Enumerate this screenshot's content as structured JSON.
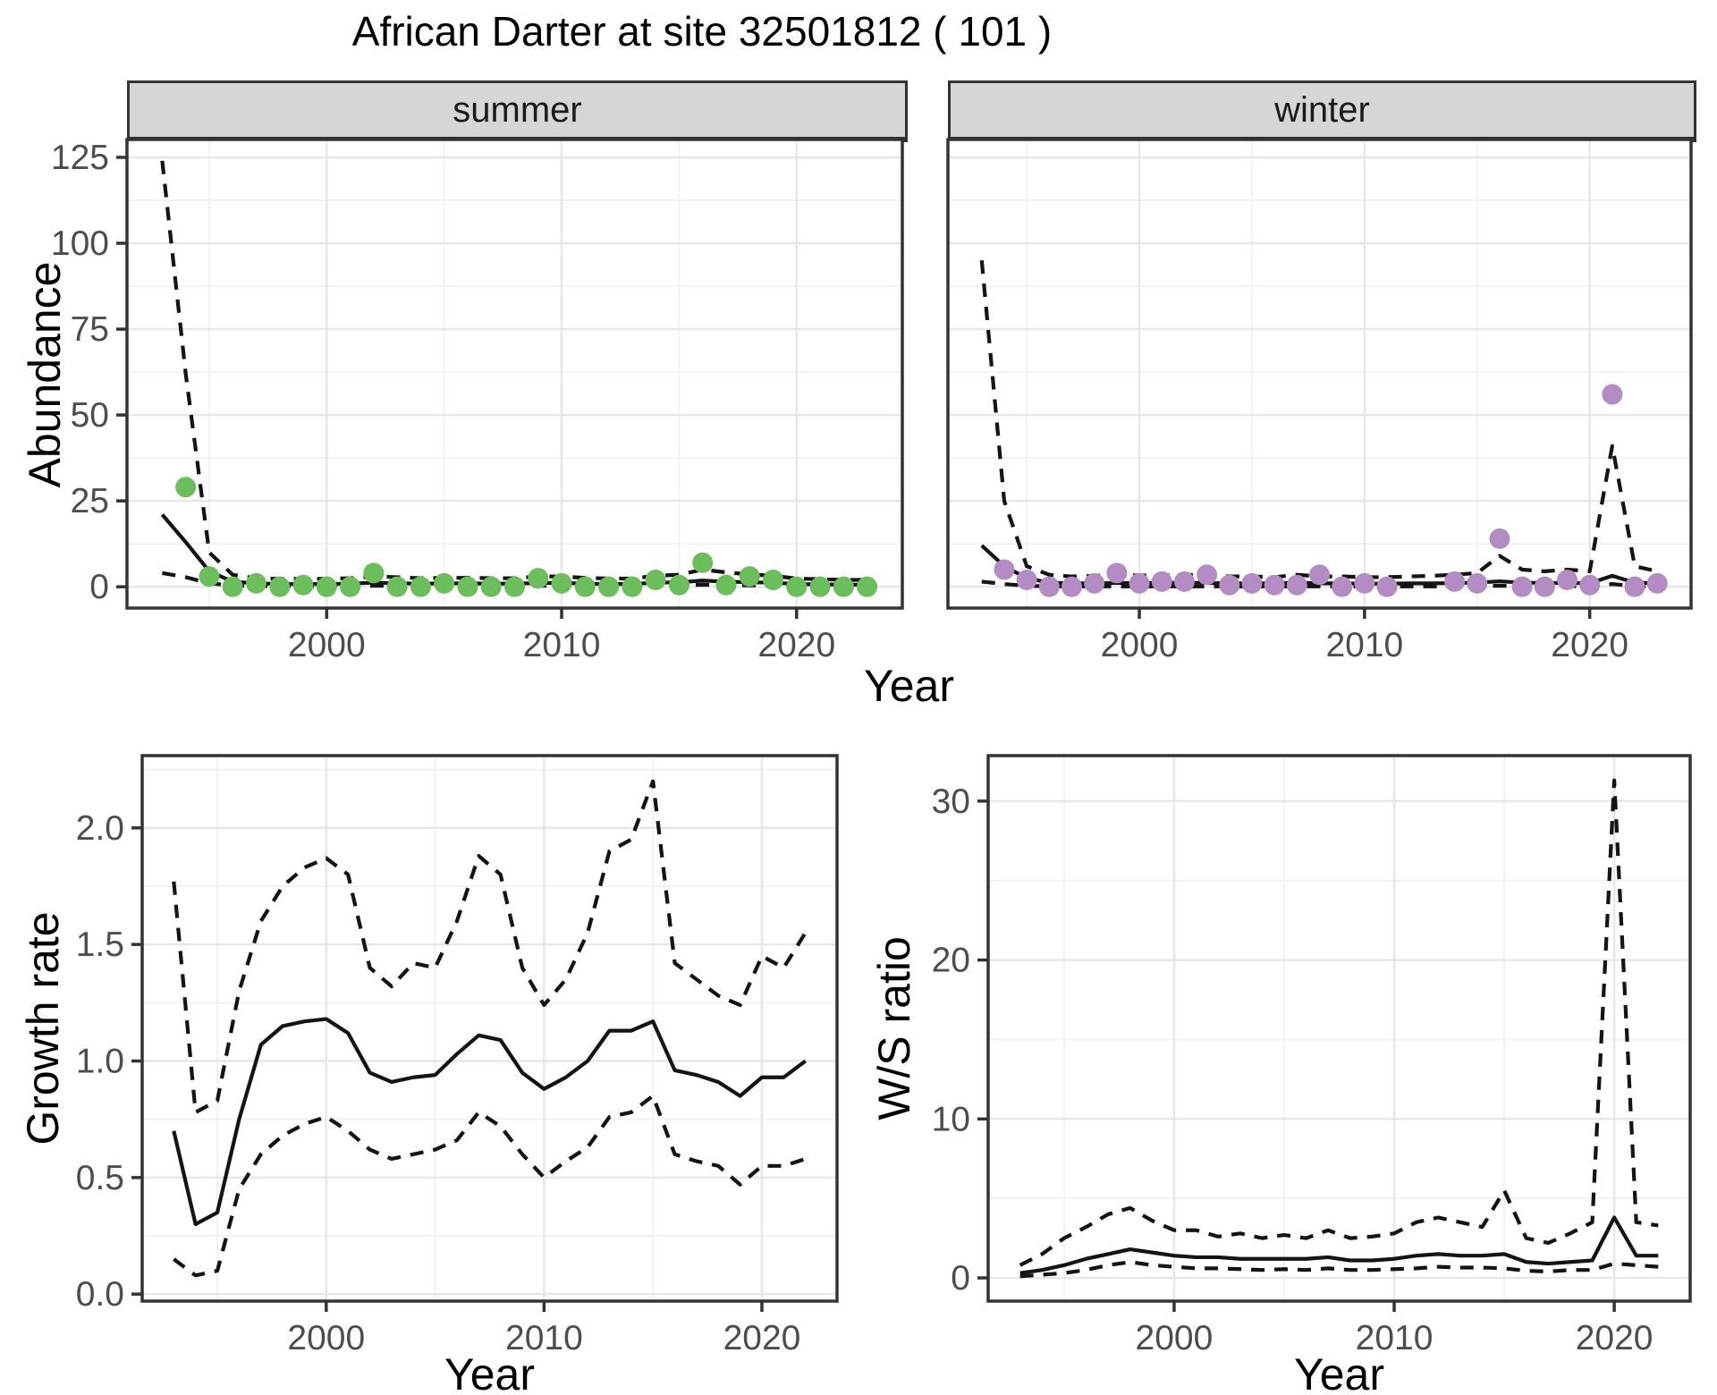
{
  "title": "African Darter at site 32501812 ( 101 )",
  "colors": {
    "summer_points": "#6cbe5c",
    "winter_points": "#b48cc4",
    "line": "#141414",
    "panel_border": "#333333",
    "grid_major": "#e7e7e7",
    "grid_minor": "#f2f2f2",
    "strip_bg": "#d6d6d6",
    "tick_text": "#4d4d4d"
  },
  "chart_data": [
    {
      "type": "scatter+line",
      "facet_label": "summer",
      "ylabel": "Abundance",
      "xlabel": "Year",
      "x_ticks": [
        2000,
        2010,
        2020
      ],
      "y_ticks": [
        0,
        25,
        50,
        75,
        100,
        125
      ],
      "xlim": [
        1991.5,
        2024.5
      ],
      "ylim": [
        -6.2,
        130.2
      ],
      "grid": true,
      "show_y_labels": true,
      "point_color": "#6cbe5c",
      "points": {
        "years": [
          1994,
          1995,
          1996,
          1997,
          1998,
          1999,
          2000,
          2001,
          2002,
          2003,
          2004,
          2005,
          2006,
          2007,
          2008,
          2009,
          2010,
          2011,
          2012,
          2013,
          2014,
          2015,
          2016,
          2017,
          2018,
          2019,
          2020,
          2021,
          2022,
          2023
        ],
        "values": [
          29,
          3,
          0,
          1,
          0,
          0.5,
          0,
          0,
          4,
          0,
          0,
          1,
          0,
          0,
          0,
          2.5,
          1,
          0,
          0,
          0,
          2,
          0.5,
          7,
          0.5,
          3,
          2,
          0,
          0,
          0,
          0
        ]
      },
      "fit": {
        "years": [
          1993,
          1994,
          1995,
          1996,
          1997,
          1998,
          1999,
          2000,
          2001,
          2002,
          2003,
          2004,
          2005,
          2006,
          2007,
          2008,
          2009,
          2010,
          2011,
          2012,
          2013,
          2014,
          2015,
          2016,
          2017,
          2018,
          2019,
          2020,
          2021,
          2022,
          2023
        ],
        "values": [
          21,
          13,
          4.5,
          1.5,
          1,
          0.8,
          0.8,
          0.8,
          0.9,
          1.2,
          1,
          0.9,
          1,
          1,
          0.9,
          0.9,
          1.1,
          1.1,
          0.9,
          0.8,
          0.8,
          1.2,
          1.3,
          1.8,
          1.5,
          1.3,
          1.2,
          0.8,
          0.7,
          0.6,
          0.6
        ]
      },
      "ci_upper": {
        "years": [
          1993,
          1994,
          1995,
          1996,
          1997,
          1998,
          1999,
          2000,
          2001,
          2002,
          2003,
          2004,
          2005,
          2006,
          2007,
          2008,
          2009,
          2010,
          2011,
          2012,
          2013,
          2014,
          2015,
          2016,
          2017,
          2018,
          2019,
          2020,
          2021,
          2022,
          2023
        ],
        "values": [
          124,
          62,
          10,
          3.5,
          2.5,
          2.3,
          2.3,
          2.3,
          2.5,
          3,
          2.8,
          2.5,
          2.6,
          2.6,
          2.5,
          2.5,
          3,
          3,
          2.6,
          2.4,
          2.4,
          3.2,
          3.5,
          5,
          4.2,
          3.6,
          3.2,
          2.4,
          2.2,
          2,
          2
        ]
      },
      "ci_lower": {
        "years": [
          1993,
          1994,
          1995,
          1996,
          1997,
          1998,
          1999,
          2000,
          2001,
          2002,
          2003,
          2004,
          2005,
          2006,
          2007,
          2008,
          2009,
          2010,
          2011,
          2012,
          2013,
          2014,
          2015,
          2016,
          2017,
          2018,
          2019,
          2020,
          2021,
          2022,
          2023
        ],
        "values": [
          4,
          2.8,
          1,
          0.4,
          0.2,
          0.2,
          0.2,
          0.2,
          0.2,
          0.3,
          0.3,
          0.2,
          0.3,
          0.3,
          0.2,
          0.2,
          0.3,
          0.3,
          0.2,
          0.2,
          0.2,
          0.3,
          0.4,
          0.6,
          0.5,
          0.4,
          0.4,
          0.2,
          0.2,
          0.2,
          0.2
        ]
      }
    },
    {
      "type": "scatter+line",
      "facet_label": "winter",
      "ylabel": "Abundance",
      "xlabel": "Year",
      "x_ticks": [
        2000,
        2010,
        2020
      ],
      "y_ticks": [
        0,
        25,
        50,
        75,
        100,
        125
      ],
      "xlim": [
        1991.5,
        2024.5
      ],
      "ylim": [
        -6.2,
        130.2
      ],
      "grid": true,
      "show_y_labels": false,
      "point_color": "#b48cc4",
      "points": {
        "years": [
          1994,
          1995,
          1996,
          1997,
          1998,
          1999,
          2000,
          2001,
          2002,
          2003,
          2004,
          2005,
          2006,
          2007,
          2008,
          2009,
          2010,
          2011,
          2014,
          2015,
          2016,
          2017,
          2018,
          2019,
          2020,
          2021,
          2022,
          2023
        ],
        "values": [
          5,
          2,
          0,
          0,
          1,
          4,
          1,
          1.5,
          1.5,
          3.5,
          0.5,
          1,
          0.5,
          0.5,
          3.5,
          0,
          1,
          0,
          1.5,
          1,
          14,
          0,
          0,
          2,
          0.5,
          56,
          0,
          1
        ]
      },
      "fit": {
        "years": [
          1993,
          1994,
          1995,
          1996,
          1997,
          1998,
          1999,
          2000,
          2001,
          2002,
          2003,
          2004,
          2005,
          2006,
          2007,
          2008,
          2009,
          2010,
          2011,
          2012,
          2013,
          2014,
          2015,
          2016,
          2017,
          2018,
          2019,
          2020,
          2021,
          2022,
          2023
        ],
        "values": [
          12,
          6,
          2.5,
          1.2,
          1,
          1,
          1.1,
          1.1,
          1.1,
          1.2,
          1.1,
          1,
          1,
          1,
          1.2,
          1,
          1,
          0.9,
          0.9,
          1,
          1,
          1.1,
          1.2,
          1.6,
          1.2,
          1.1,
          1.1,
          1,
          3.2,
          1.2,
          1
        ]
      },
      "ci_upper": {
        "years": [
          1993,
          1994,
          1995,
          1996,
          1997,
          1998,
          1999,
          2000,
          2001,
          2002,
          2003,
          2004,
          2005,
          2006,
          2007,
          2008,
          2009,
          2010,
          2011,
          2012,
          2013,
          2014,
          2015,
          2016,
          2017,
          2018,
          2019,
          2020,
          2021,
          2022,
          2023
        ],
        "values": [
          95,
          25,
          6,
          3.5,
          3,
          3.2,
          3.5,
          3.3,
          3.2,
          3.5,
          3.3,
          3,
          3,
          2.8,
          3.5,
          3,
          3,
          2.8,
          2.8,
          3,
          3.2,
          3.5,
          4,
          9,
          5,
          4.5,
          5,
          4.5,
          41,
          6,
          4.5
        ]
      },
      "ci_lower": {
        "years": [
          1993,
          1994,
          1995,
          1996,
          1997,
          1998,
          1999,
          2000,
          2001,
          2002,
          2003,
          2004,
          2005,
          2006,
          2007,
          2008,
          2009,
          2010,
          2011,
          2012,
          2013,
          2014,
          2015,
          2016,
          2017,
          2018,
          2019,
          2020,
          2021,
          2022,
          2023
        ],
        "values": [
          1.5,
          0.8,
          0.3,
          0.1,
          0.1,
          0.1,
          0.1,
          0.1,
          0.1,
          0.1,
          0.1,
          0.1,
          0.1,
          0.1,
          0.1,
          0.1,
          0.1,
          0.1,
          0.1,
          0.1,
          0.1,
          0.1,
          0.2,
          0.3,
          0.2,
          0.2,
          0.2,
          0.1,
          0.8,
          0.2,
          0.1
        ]
      }
    },
    {
      "type": "line",
      "facet_label": "",
      "ylabel": "Growth rate",
      "xlabel": "Year",
      "x_ticks": [
        2000,
        2010,
        2020
      ],
      "y_ticks": [
        0.0,
        0.5,
        1.0,
        1.5,
        2.0
      ],
      "y_tick_labels": [
        "0.0",
        "0.5",
        "1.0",
        "1.5",
        "2.0"
      ],
      "xlim": [
        1991.55,
        2023.45
      ],
      "ylim": [
        -0.03,
        2.31
      ],
      "grid": true,
      "show_y_labels": true,
      "fit": {
        "years": [
          1993,
          1994,
          1995,
          1996,
          1997,
          1998,
          1999,
          2000,
          2001,
          2002,
          2003,
          2004,
          2005,
          2006,
          2007,
          2008,
          2009,
          2010,
          2011,
          2012,
          2013,
          2014,
          2015,
          2016,
          2017,
          2018,
          2019,
          2020,
          2021,
          2022
        ],
        "values": [
          0.7,
          0.3,
          0.35,
          0.75,
          1.07,
          1.15,
          1.17,
          1.18,
          1.12,
          0.95,
          0.91,
          0.93,
          0.94,
          1.03,
          1.11,
          1.09,
          0.95,
          0.88,
          0.93,
          1.0,
          1.13,
          1.13,
          1.17,
          0.96,
          0.94,
          0.91,
          0.85,
          0.93,
          0.93,
          1.0
        ]
      },
      "ci_upper": {
        "years": [
          1993,
          1994,
          1995,
          1996,
          1997,
          1998,
          1999,
          2000,
          2001,
          2002,
          2003,
          2004,
          2005,
          2006,
          2007,
          2008,
          2009,
          2010,
          2011,
          2012,
          2013,
          2014,
          2015,
          2016,
          2017,
          2018,
          2019,
          2020,
          2021,
          2022
        ],
        "values": [
          1.77,
          0.78,
          0.83,
          1.3,
          1.6,
          1.75,
          1.83,
          1.87,
          1.8,
          1.4,
          1.32,
          1.42,
          1.4,
          1.6,
          1.88,
          1.8,
          1.4,
          1.24,
          1.35,
          1.55,
          1.9,
          1.95,
          2.2,
          1.42,
          1.35,
          1.28,
          1.24,
          1.45,
          1.4,
          1.55
        ]
      },
      "ci_lower": {
        "years": [
          1993,
          1994,
          1995,
          1996,
          1997,
          1998,
          1999,
          2000,
          2001,
          2002,
          2003,
          2004,
          2005,
          2006,
          2007,
          2008,
          2009,
          2010,
          2011,
          2012,
          2013,
          2014,
          2015,
          2016,
          2017,
          2018,
          2019,
          2020,
          2021,
          2022
        ],
        "values": [
          0.15,
          0.08,
          0.1,
          0.45,
          0.6,
          0.68,
          0.73,
          0.76,
          0.7,
          0.62,
          0.58,
          0.6,
          0.62,
          0.66,
          0.78,
          0.72,
          0.6,
          0.5,
          0.57,
          0.63,
          0.76,
          0.78,
          0.85,
          0.6,
          0.57,
          0.55,
          0.47,
          0.55,
          0.55,
          0.58
        ]
      }
    },
    {
      "type": "line",
      "facet_label": "",
      "ylabel": "W/S ratio",
      "xlabel": "Year",
      "x_ticks": [
        2000,
        2010,
        2020
      ],
      "y_ticks": [
        0,
        10,
        20,
        30
      ],
      "xlim": [
        1991.55,
        2023.45
      ],
      "ylim": [
        -1.46,
        32.86
      ],
      "grid": true,
      "show_y_labels": true,
      "fit": {
        "years": [
          1993,
          1994,
          1995,
          1996,
          1997,
          1998,
          1999,
          2000,
          2001,
          2002,
          2003,
          2004,
          2005,
          2006,
          2007,
          2008,
          2009,
          2010,
          2011,
          2012,
          2013,
          2014,
          2015,
          2016,
          2017,
          2018,
          2019,
          2020,
          2021,
          2022
        ],
        "values": [
          0.3,
          0.5,
          0.8,
          1.2,
          1.5,
          1.8,
          1.6,
          1.4,
          1.3,
          1.3,
          1.2,
          1.2,
          1.2,
          1.2,
          1.3,
          1.1,
          1.1,
          1.2,
          1.4,
          1.5,
          1.4,
          1.4,
          1.5,
          1.0,
          0.9,
          1.0,
          1.1,
          3.8,
          1.4,
          1.4
        ]
      },
      "ci_upper": {
        "years": [
          1993,
          1994,
          1995,
          1996,
          1997,
          1998,
          1999,
          2000,
          2001,
          2002,
          2003,
          2004,
          2005,
          2006,
          2007,
          2008,
          2009,
          2010,
          2011,
          2012,
          2013,
          2014,
          2015,
          2016,
          2017,
          2018,
          2019,
          2020,
          2021,
          2022
        ],
        "values": [
          0.8,
          1.5,
          2.5,
          3.2,
          4.0,
          4.4,
          3.6,
          3.0,
          3.0,
          2.6,
          2.8,
          2.5,
          2.7,
          2.5,
          3.0,
          2.5,
          2.6,
          2.8,
          3.5,
          3.8,
          3.5,
          3.2,
          5.5,
          2.5,
          2.2,
          2.8,
          3.5,
          31.3,
          3.5,
          3.3
        ]
      },
      "ci_lower": {
        "years": [
          1993,
          1994,
          1995,
          1996,
          1997,
          1998,
          1999,
          2000,
          2001,
          2002,
          2003,
          2004,
          2005,
          2006,
          2007,
          2008,
          2009,
          2010,
          2011,
          2012,
          2013,
          2014,
          2015,
          2016,
          2017,
          2018,
          2019,
          2020,
          2021,
          2022
        ],
        "values": [
          0.1,
          0.2,
          0.3,
          0.5,
          0.8,
          1.0,
          0.8,
          0.7,
          0.6,
          0.6,
          0.55,
          0.5,
          0.55,
          0.5,
          0.6,
          0.5,
          0.5,
          0.55,
          0.6,
          0.7,
          0.65,
          0.65,
          0.6,
          0.45,
          0.4,
          0.5,
          0.5,
          0.9,
          0.8,
          0.7
        ]
      }
    }
  ]
}
